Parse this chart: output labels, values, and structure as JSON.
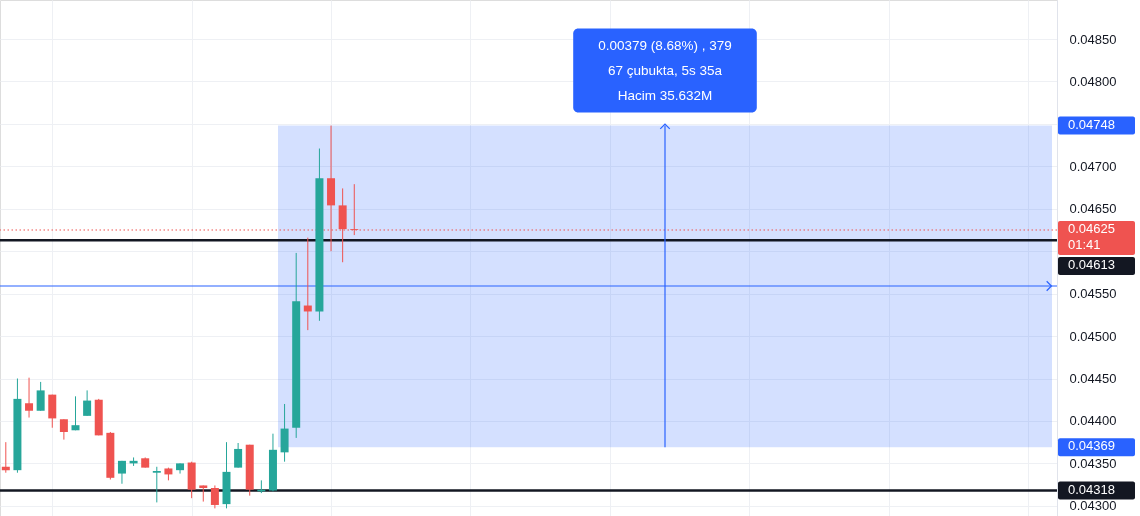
{
  "chart_data": {
    "type": "candlestick",
    "categories": [
      null,
      null,
      null,
      null,
      null,
      null,
      null,
      null,
      null,
      null,
      null,
      null,
      null,
      null,
      null,
      null,
      null,
      null,
      null,
      null,
      null,
      null,
      null,
      null,
      null,
      null,
      null,
      null,
      null,
      null,
      null,
      null,
      null,
      null,
      null,
      null,
      null,
      null,
      null,
      null,
      null,
      null,
      null,
      null,
      null,
      null,
      null,
      null,
      null,
      null,
      null,
      null,
      null,
      null,
      null,
      null,
      null,
      null,
      null,
      null,
      null,
      null,
      null,
      null,
      null,
      null,
      null,
      null,
      null,
      null,
      null,
      null,
      null,
      null,
      null,
      null,
      null,
      null,
      null,
      null,
      null,
      null,
      null,
      null,
      null,
      null,
      null,
      null,
      null,
      null,
      null
    ],
    "ohlc": [
      [
        0.04346,
        0.04375,
        0.04339,
        0.04342
      ],
      [
        0.04342,
        0.0445,
        0.04339,
        0.04426
      ],
      [
        0.04421,
        0.04451,
        0.04404,
        0.04412
      ],
      [
        0.04412,
        0.04446,
        0.04412,
        0.04436
      ],
      [
        0.04431,
        0.04431,
        0.04392,
        0.04403
      ],
      [
        0.04402,
        0.04402,
        0.04378,
        0.04387
      ],
      [
        0.04389,
        0.04429,
        0.04389,
        0.04395
      ],
      [
        0.04406,
        0.04436,
        0.04406,
        0.04424
      ],
      [
        0.04425,
        0.04426,
        0.04383,
        0.04383
      ],
      [
        0.04386,
        0.04387,
        0.04331,
        0.04333
      ],
      [
        0.04338,
        0.04353,
        0.04326,
        0.04353
      ],
      [
        0.0435,
        0.04357,
        0.04347,
        0.04353
      ],
      [
        0.04356,
        0.04357,
        0.04345,
        0.04345
      ],
      [
        0.04339,
        0.04346,
        0.04304,
        0.04341
      ],
      [
        0.04344,
        0.04345,
        0.0433,
        0.04337
      ],
      [
        0.04342,
        0.0435,
        0.04338,
        0.0435
      ],
      [
        0.04351,
        0.04352,
        0.04309,
        0.04319
      ],
      [
        0.04324,
        0.04324,
        0.04305,
        0.04321
      ],
      [
        0.04321,
        0.04324,
        0.04297,
        0.04301
      ],
      [
        0.04302,
        0.04375,
        0.04297,
        0.0434
      ],
      [
        0.04345,
        0.04374,
        0.04345,
        0.04367
      ],
      [
        0.04372,
        0.04372,
        0.04312,
        0.04319
      ],
      [
        0.04317,
        0.0433,
        0.04315,
        0.04319
      ],
      [
        0.04318,
        0.04385,
        0.04317,
        0.04366
      ],
      [
        0.04363,
        0.0442,
        0.04352,
        0.04391
      ],
      [
        0.04392,
        0.04598,
        0.0438,
        0.04541
      ],
      [
        0.04536,
        0.04616,
        0.04507,
        0.04529
      ],
      [
        0.04529,
        0.04721,
        0.04518,
        0.04686
      ],
      [
        0.04686,
        0.04748,
        0.046,
        0.04654
      ],
      [
        0.04654,
        0.04674,
        0.04587,
        0.04626
      ],
      [
        0.04626,
        0.04679,
        0.04619,
        0.04625
      ],
      null,
      null,
      null,
      null,
      null,
      null,
      null,
      null,
      null,
      null,
      null,
      null,
      null,
      null,
      null,
      null,
      null,
      null,
      null,
      null,
      null,
      null,
      null,
      null,
      null,
      null,
      null,
      null,
      null,
      null,
      null,
      null,
      null,
      null,
      null,
      null,
      null,
      null,
      null,
      null,
      null,
      null,
      null,
      null,
      null,
      null,
      null,
      null,
      null,
      null,
      null,
      null,
      null,
      null,
      null,
      null,
      null,
      null,
      null,
      null
    ],
    "colors": [
      "#ef5350",
      "#26a69a",
      "#ef5350",
      "#26a69a",
      "#ef5350",
      "#ef5350",
      "#26a69a",
      "#26a69a",
      "#ef5350",
      "#ef5350",
      "#26a69a",
      "#26a69a",
      "#ef5350",
      "#26a69a",
      "#ef5350",
      "#26a69a",
      "#ef5350",
      "#ef5350",
      "#ef5350",
      "#26a69a",
      "#26a69a",
      "#ef5350",
      "#26a69a",
      "#26a69a",
      "#26a69a",
      "#26a69a",
      "#ef5350",
      "#26a69a",
      "#ef5350",
      "#ef5350",
      "#ef5350",
      null,
      null,
      null,
      null,
      null,
      null,
      null,
      null,
      null,
      null,
      null,
      null,
      null,
      null,
      null,
      null,
      null,
      null,
      null,
      null,
      null,
      null,
      null,
      null,
      null,
      null,
      null,
      null,
      null,
      null,
      null,
      null,
      null,
      null,
      null,
      null,
      null,
      null,
      null,
      null,
      null,
      null,
      null,
      null,
      null,
      null,
      null,
      null,
      null,
      null,
      null,
      null,
      null,
      null,
      null,
      null,
      null,
      null,
      null,
      null
    ],
    "ylim": [
      0.04288,
      0.04896
    ],
    "yticks": [
      {
        "value": 0.043,
        "label": "0.04300"
      },
      {
        "value": 0.0435,
        "label": "0.04350"
      },
      {
        "value": 0.044,
        "label": "0.04400"
      },
      {
        "value": 0.0445,
        "label": "0.04450"
      },
      {
        "value": 0.045,
        "label": "0.04500"
      },
      {
        "value": 0.0455,
        "label": "0.04550"
      },
      {
        "value": 0.046,
        "label": null
      },
      {
        "value": 0.0465,
        "label": "0.04650"
      },
      {
        "value": 0.047,
        "label": "0.04700"
      },
      {
        "value": 0.0475,
        "label": null
      },
      {
        "value": 0.048,
        "label": "0.04800"
      },
      {
        "value": 0.0485,
        "label": "0.04850"
      }
    ],
    "tick_labels": "y",
    "grid": true,
    "ref_lines": [
      {
        "axis": "y",
        "value": 0.04613,
        "label": "0.04613",
        "color": "#131722",
        "line_style": "solid"
      },
      {
        "axis": "y",
        "value": 0.04318,
        "label": "0.04318",
        "color": "#131722",
        "line_style": "solid"
      },
      {
        "axis": "y",
        "value": 0.04625,
        "label": "0.04625\n01:41",
        "color": "#ef5350",
        "line_style": "dotted"
      },
      {
        "axis": "y",
        "value": 0.04559,
        "color": "#2962ff",
        "line_style": "solid"
      }
    ],
    "bands": [
      {
        "axis": "y",
        "from": 0.04369,
        "to": 0.04748,
        "label": "0.00379 (8.68%) , 379\n67 çubukta, 5s 35a\nHacim 35.632M",
        "color": "#2962ff"
      }
    ],
    "annotations": [
      "0.04748",
      "0.04369"
    ]
  }
}
